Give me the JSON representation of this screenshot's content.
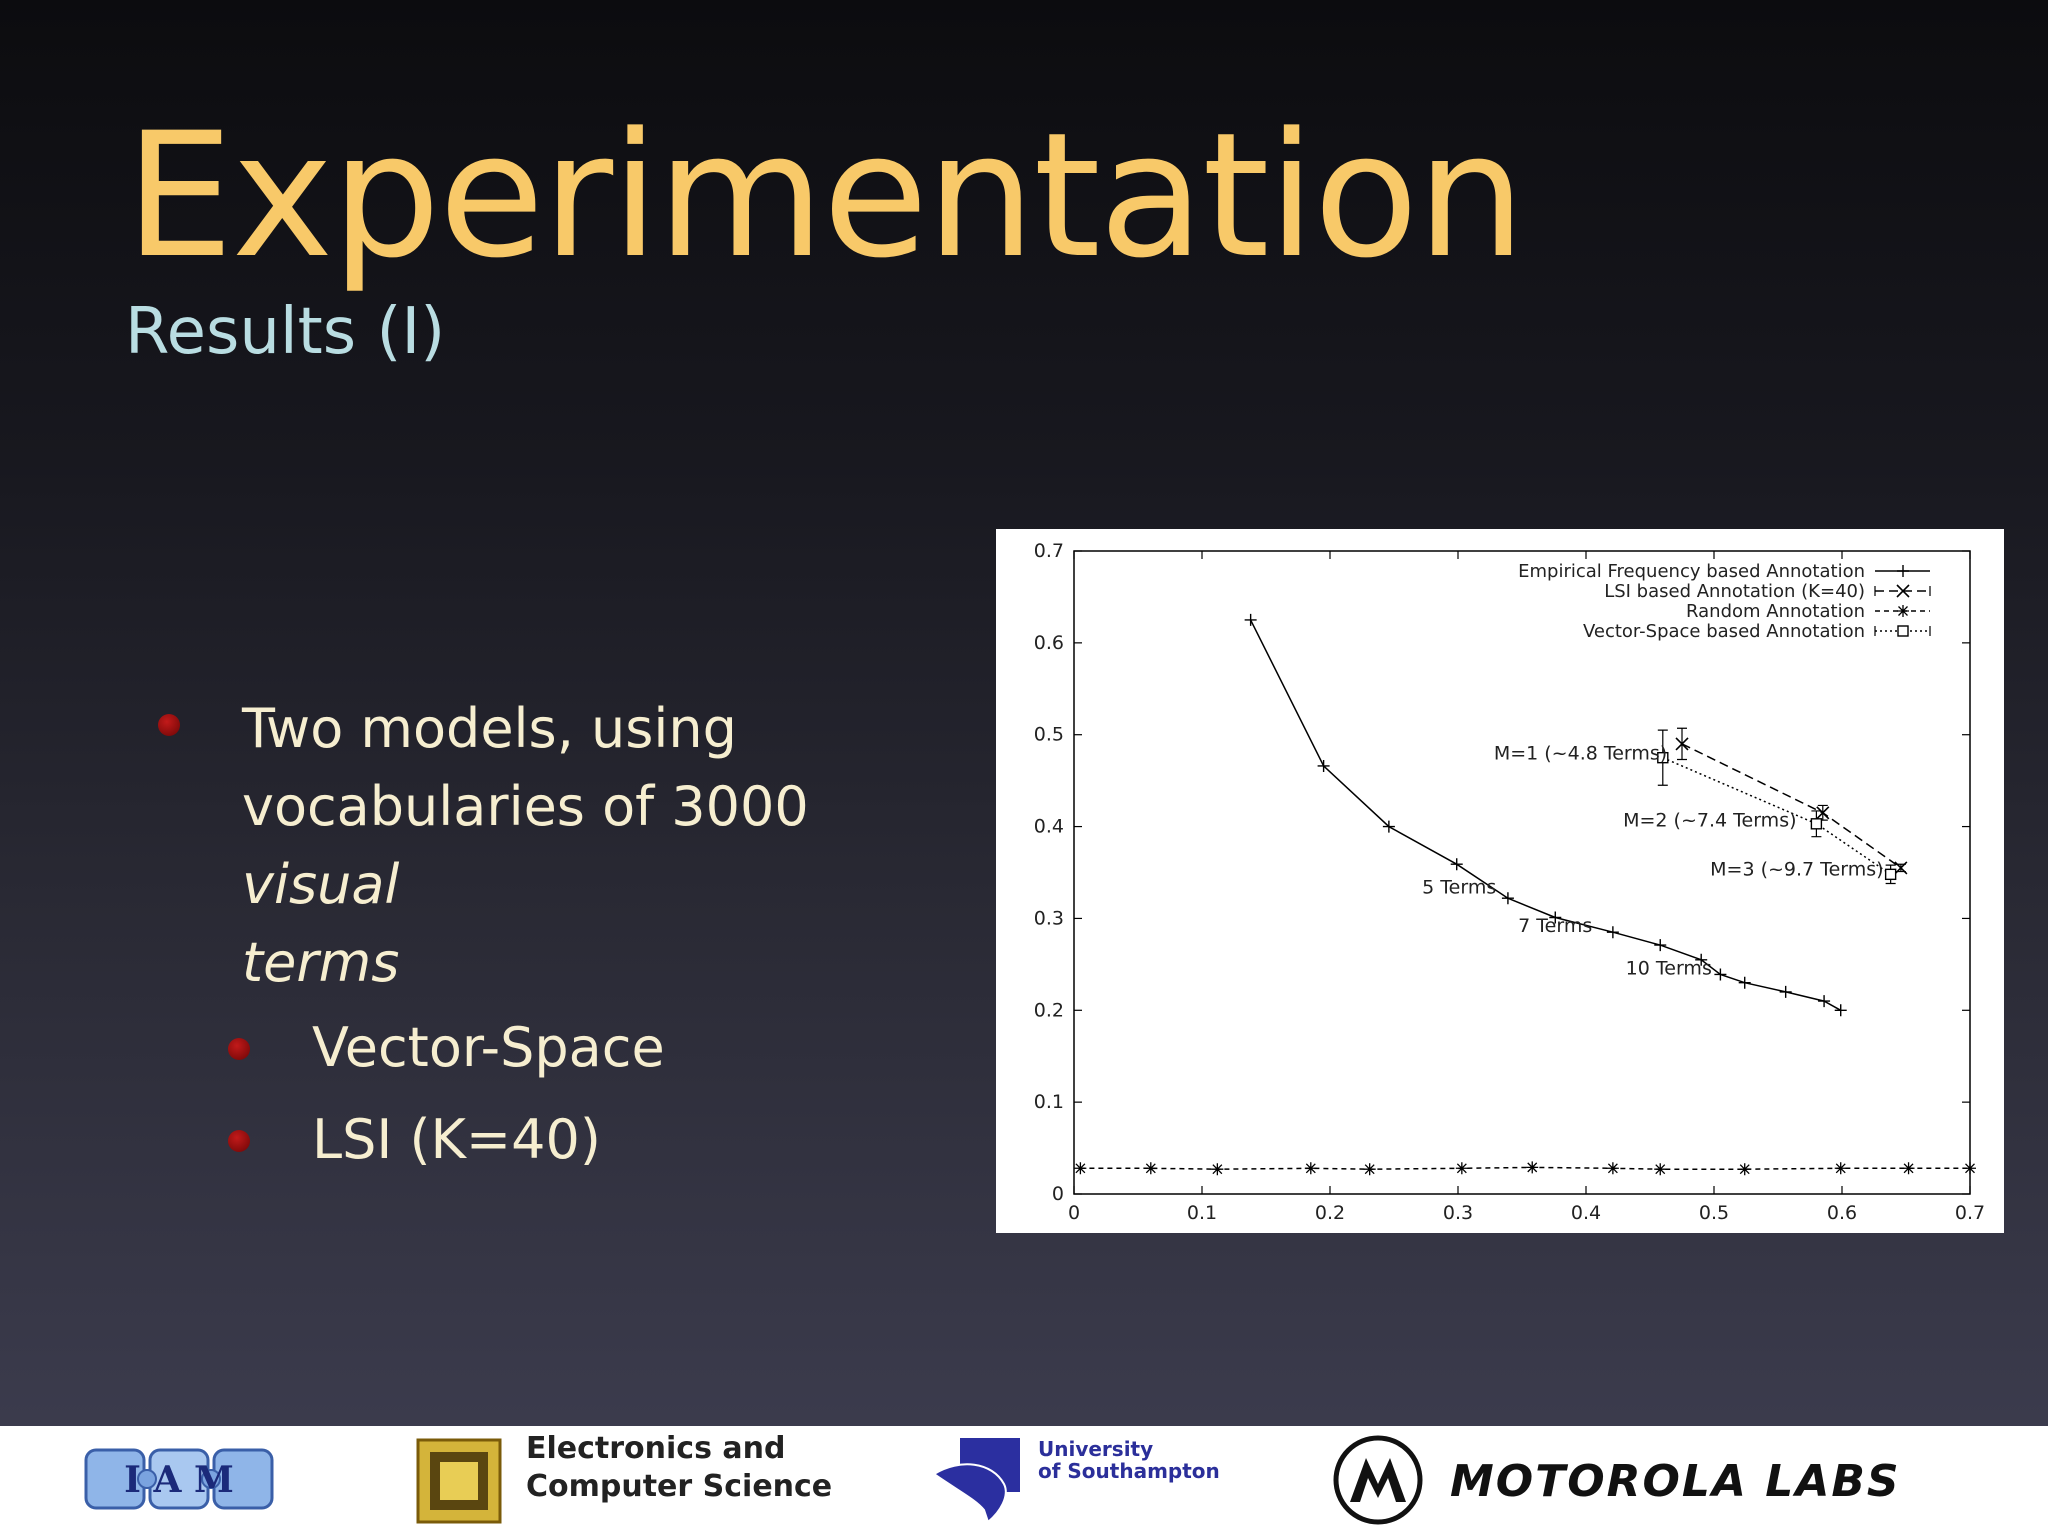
{
  "title": "Experimentation",
  "subtitle": "Results (I)",
  "bullets": {
    "main_line1": "Two models, using",
    "main_line2_prefix": "vocabularies of 3000",
    "main_line2_italic": "visual",
    "main_line3_italic": "terms",
    "sub1": "Vector-Space",
    "sub2": "LSI (K=40)"
  },
  "footer": {
    "iam_logo_text": "I A M",
    "ecs_line1": "Electronics and",
    "ecs_line2": "Computer Science",
    "uos_line1": "University",
    "uos_line2": "of Southampton",
    "motorola": "MOTOROLA LABS"
  },
  "chart_data": {
    "type": "line",
    "title": "",
    "xlabel": "",
    "ylabel": "",
    "xlim": [
      0,
      0.7
    ],
    "ylim": [
      0,
      0.7
    ],
    "xticks": [
      "0",
      "0.1",
      "0.2",
      "0.3",
      "0.4",
      "0.5",
      "0.6",
      "0.7"
    ],
    "yticks": [
      "0",
      "0.1",
      "0.2",
      "0.3",
      "0.4",
      "0.5",
      "0.6",
      "0.7"
    ],
    "grid": false,
    "legend_position": "top-right",
    "series": [
      {
        "name": "Empirical Frequency based Annotation",
        "marker": "+",
        "dash": "solid",
        "x": [
          0.138,
          0.195,
          0.246,
          0.299,
          0.339,
          0.376,
          0.421,
          0.458,
          0.49,
          0.505,
          0.524,
          0.556,
          0.586,
          0.599
        ],
        "y": [
          0.625,
          0.466,
          0.4,
          0.359,
          0.322,
          0.301,
          0.285,
          0.271,
          0.255,
          0.239,
          0.23,
          0.22,
          0.21,
          0.2
        ]
      },
      {
        "name": "LSI based Annotation (K=40)",
        "marker": "x",
        "dash": "dashed",
        "x": [
          0.475,
          0.585,
          0.646
        ],
        "y": [
          0.49,
          0.415,
          0.355
        ],
        "yerr": [
          0.017,
          0.008,
          0.004
        ]
      },
      {
        "name": "Random Annotation",
        "marker": "*",
        "dash": "short-dashed",
        "x": [
          0.005,
          0.06,
          0.112,
          0.185,
          0.231,
          0.303,
          0.358,
          0.421,
          0.458,
          0.524,
          0.599,
          0.652,
          0.7
        ],
        "y": [
          0.028,
          0.028,
          0.027,
          0.028,
          0.027,
          0.028,
          0.029,
          0.028,
          0.027,
          0.027,
          0.028,
          0.028,
          0.028
        ]
      },
      {
        "name": "Vector-Space based Annotation",
        "marker": "square",
        "dash": "dotted",
        "x": [
          0.46,
          0.58,
          0.638
        ],
        "y": [
          0.475,
          0.403,
          0.348
        ],
        "yerr": [
          0.03,
          0.014,
          0.01
        ]
      }
    ],
    "annotations": [
      {
        "text": "5 Terms",
        "x": 0.272,
        "y": 0.327
      },
      {
        "text": "7 Terms",
        "x": 0.347,
        "y": 0.285
      },
      {
        "text": "10 Terms",
        "x": 0.431,
        "y": 0.239
      },
      {
        "text": "M=1 (~4.8 Terms)",
        "x": 0.328,
        "y": 0.473
      },
      {
        "text": "M=2 (~7.4 Terms)",
        "x": 0.429,
        "y": 0.4
      },
      {
        "text": "M=3 (~9.7 Terms)",
        "x": 0.497,
        "y": 0.347
      }
    ]
  }
}
